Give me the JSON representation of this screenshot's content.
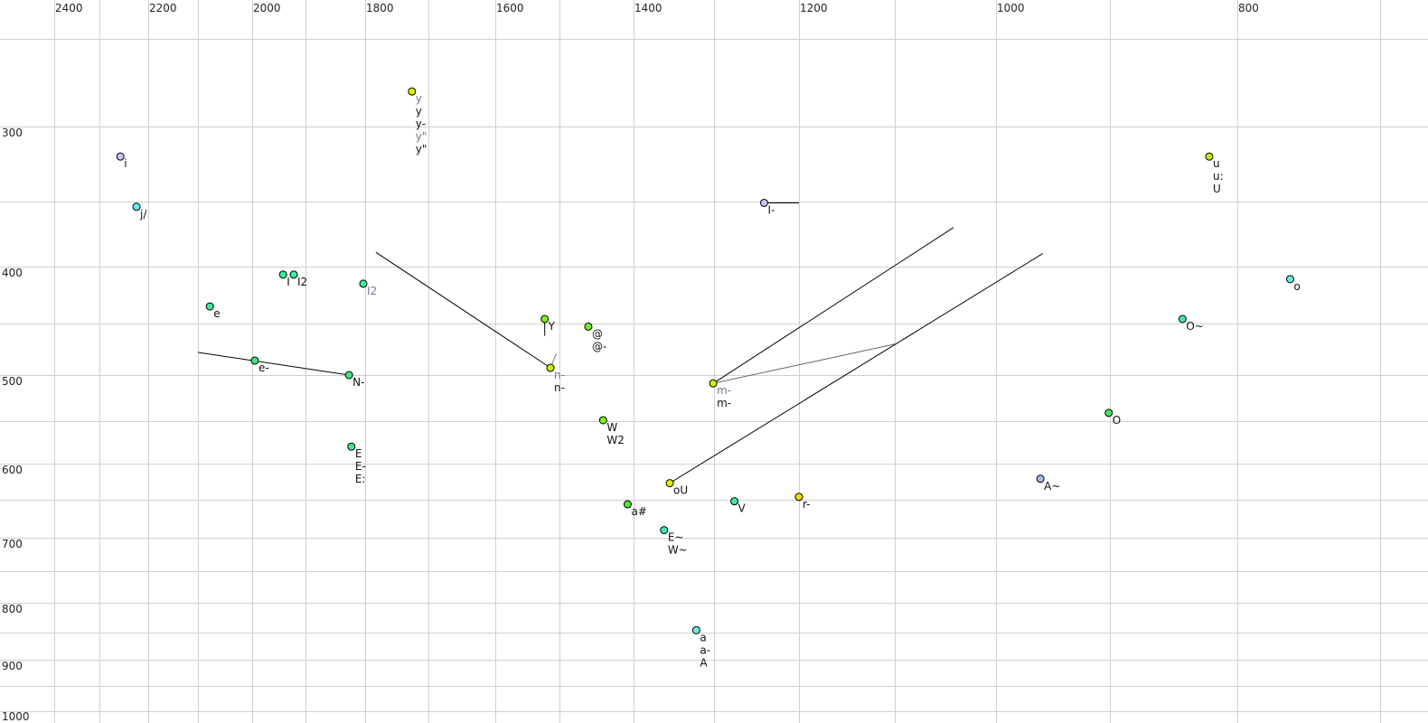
{
  "chart_data": {
    "type": "scatter",
    "title": "",
    "xlabel": "",
    "ylabel": "",
    "x_axis": {
      "reversed": true,
      "scale": "nonlinear",
      "position": "top",
      "tick_labels": [
        "2400",
        "2200",
        "2000",
        "1800",
        "1600",
        "1400",
        "1200",
        "1000",
        "800"
      ],
      "gridlines": [
        2400,
        2300,
        2200,
        2100,
        2000,
        1900,
        1800,
        1700,
        1600,
        1500,
        1400,
        1300,
        1200,
        1100,
        1000,
        900,
        800,
        700
      ]
    },
    "y_axis": {
      "reversed": true,
      "scale": "nonlinear",
      "position": "left",
      "tick_labels": [
        "300",
        "400",
        "500",
        "600",
        "700",
        "800",
        "900",
        "1000"
      ],
      "gridlines": [
        250,
        300,
        350,
        400,
        450,
        500,
        550,
        600,
        650,
        700,
        750,
        800,
        850,
        900,
        950,
        1000
      ]
    },
    "grid": true,
    "grid_color": "#d0d0d0",
    "points": [
      {
        "x": 2257,
        "y": 320,
        "color": "#c8c4f0",
        "labels": [
          "i"
        ],
        "dim": []
      },
      {
        "x": 2224,
        "y": 354,
        "color": "#60eef0",
        "labels": [
          "j/"
        ],
        "dim": []
      },
      {
        "x": 2078,
        "y": 435,
        "color": "#40e8a0",
        "labels": [
          "e"
        ],
        "dim": []
      },
      {
        "x": 1942,
        "y": 407,
        "color": "#40e8a0",
        "labels": [
          "I"
        ],
        "dim": []
      },
      {
        "x": 1922,
        "y": 407,
        "color": "#40e8a0",
        "labels": [
          "I2"
        ],
        "dim": []
      },
      {
        "x": 1803,
        "y": 415,
        "color": "#40e8a0",
        "labels": [
          "I2"
        ],
        "dim": [
          0
        ]
      },
      {
        "x": 1995,
        "y": 486,
        "color": "#40e880",
        "labels": [
          "e-"
        ],
        "dim": []
      },
      {
        "x": 1827,
        "y": 500,
        "color": "#40e880",
        "labels": [
          "N-"
        ],
        "dim": []
      },
      {
        "x": 1823,
        "y": 580,
        "color": "#40e890",
        "labels": [
          "E",
          "E-",
          "E:"
        ],
        "dim": []
      },
      {
        "x": 1726,
        "y": 280,
        "color": "#e0f000",
        "labels": [
          "y",
          "y",
          "y-",
          "y\"",
          "y\""
        ],
        "dim": [
          0,
          3
        ]
      },
      {
        "x": 1523,
        "y": 446,
        "color": "#80f020",
        "labels": [
          "Y"
        ],
        "dim": []
      },
      {
        "x": 1461,
        "y": 453,
        "color": "#70f020",
        "labels": [
          "@",
          "@-"
        ],
        "dim": []
      },
      {
        "x": 1514,
        "y": 493,
        "color": "#c0f000",
        "labels": [
          "n-",
          "n-"
        ],
        "dim": [
          0
        ]
      },
      {
        "x": 1301,
        "y": 509,
        "color": "#d8f000",
        "labels": [
          "m-",
          "m-"
        ],
        "dim": [
          0
        ]
      },
      {
        "x": 1441,
        "y": 549,
        "color": "#80f020",
        "labels": [
          "W",
          "W2"
        ],
        "dim": []
      },
      {
        "x": 1355,
        "y": 627,
        "color": "#e0f000",
        "labels": [
          "oU"
        ],
        "dim": []
      },
      {
        "x": 1408,
        "y": 656,
        "color": "#50e840",
        "labels": [
          "a#"
        ],
        "dim": []
      },
      {
        "x": 1276,
        "y": 652,
        "color": "#40e8a0",
        "labels": [
          "V"
        ],
        "dim": []
      },
      {
        "x": 1200,
        "y": 646,
        "color": "#f0e000",
        "labels": [
          "r-"
        ],
        "dim": []
      },
      {
        "x": 1362,
        "y": 690,
        "color": "#40e8b0",
        "labels": [
          "E~",
          "W~"
        ],
        "dim": []
      },
      {
        "x": 1322,
        "y": 846,
        "color": "#60eef0",
        "labels": [
          "a",
          "a-",
          "A"
        ],
        "dim": []
      },
      {
        "x": 1241,
        "y": 351,
        "color": "#c8c4f0",
        "labels": [
          "I-"
        ],
        "dim": []
      },
      {
        "x": 822,
        "y": 320,
        "color": "#c8f000",
        "labels": [
          "u",
          "u:",
          "U"
        ],
        "dim": []
      },
      {
        "x": 763,
        "y": 411,
        "color": "#60eef0",
        "labels": [
          "o"
        ],
        "dim": []
      },
      {
        "x": 843,
        "y": 446,
        "color": "#40e8a0",
        "labels": [
          "O~"
        ],
        "dim": []
      },
      {
        "x": 901,
        "y": 541,
        "color": "#40e860",
        "labels": [
          "O"
        ],
        "dim": []
      },
      {
        "x": 961,
        "y": 621,
        "color": "#a8b8f0",
        "labels": [
          "A~"
        ],
        "dim": []
      }
    ],
    "lines": [
      {
        "from": [
          2100,
          478
        ],
        "to": [
          1827,
          500
        ],
        "color": "#000000"
      },
      {
        "from": [
          1783,
          389
        ],
        "to": [
          1514,
          493
        ],
        "color": "#000000"
      },
      {
        "from": [
          1514,
          493
        ],
        "to": [
          1505,
          479
        ],
        "color": "#808080"
      },
      {
        "from": [
          1301,
          509
        ],
        "to": [
          1042,
          370
        ],
        "color": "#000000"
      },
      {
        "from": [
          1355,
          627
        ],
        "to": [
          959,
          390
        ],
        "color": "#000000"
      },
      {
        "from": [
          1301,
          509
        ],
        "to": [
          1100,
          470
        ],
        "color": "#606060"
      },
      {
        "from": [
          1241,
          351
        ],
        "to": [
          1200,
          351
        ],
        "color": "#000000"
      },
      {
        "from": [
          1523,
          446
        ],
        "to": [
          1523,
          462
        ],
        "color": "#000000"
      }
    ]
  }
}
